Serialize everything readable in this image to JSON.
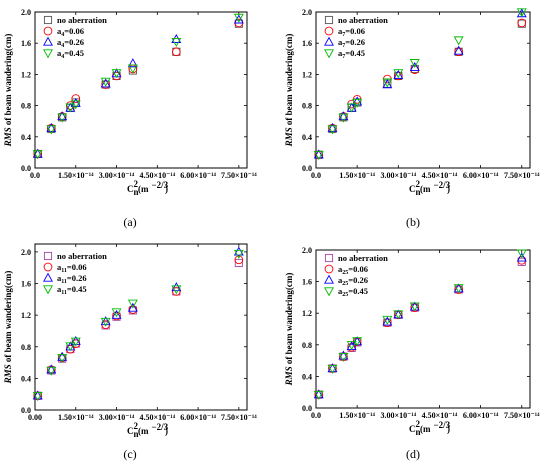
{
  "chart_data": [
    {
      "type": "scatter",
      "caption": "(a)",
      "ylabel_em": "RMS",
      "ylabel_rest": " of beam wandering(cm)",
      "xlabel_main": "C",
      "xlabel_sup": "2",
      "xlabel_sub": "n",
      "xlabel_unit": "(m",
      "xlabel_unit_sup": "−2/3",
      "xlabel_close": ")",
      "xlim": [
        0,
        7.8e-14
      ],
      "ylim": [
        0,
        2.0
      ],
      "xticks": [
        {
          "v": 0,
          "label": "0.0"
        },
        {
          "v": 1.5e-14,
          "label": "1.50×10⁻¹⁴"
        },
        {
          "v": 3e-14,
          "label": "3.00×10⁻¹⁴"
        },
        {
          "v": 4.5e-14,
          "label": "4.50×10⁻¹⁴"
        },
        {
          "v": 6e-14,
          "label": "6.00×10⁻¹⁴"
        },
        {
          "v": 7.5e-14,
          "label": "7.50×10⁻¹⁴"
        }
      ],
      "yticks": [
        {
          "v": 0.0,
          "label": "0.0"
        },
        {
          "v": 0.4,
          "label": "0.4"
        },
        {
          "v": 0.8,
          "label": "0.8"
        },
        {
          "v": 1.2,
          "label": "1.2"
        },
        {
          "v": 1.6,
          "label": "1.6"
        },
        {
          "v": 2.0,
          "label": "2.0"
        }
      ],
      "legend_placement": "top-left",
      "series": [
        {
          "name": "no aberration",
          "name_base": "",
          "name_sub": "",
          "marker": "square",
          "color": "#555555",
          "x": [
            1e-15,
            6e-15,
            1e-14,
            1.3e-14,
            1.5e-14,
            2.6e-14,
            3e-14,
            3.6e-14,
            5.2e-14,
            7.5e-14
          ],
          "y": [
            0.18,
            0.5,
            0.65,
            0.77,
            0.84,
            1.07,
            1.18,
            1.25,
            1.49,
            1.85
          ]
        },
        {
          "name": "",
          "name_base": "a",
          "name_sub": "4",
          "name_val": "=0.06",
          "marker": "circle",
          "color": "#ff0000",
          "x": [
            1e-15,
            6e-15,
            1e-14,
            1.3e-14,
            1.5e-14,
            2.6e-14,
            3e-14,
            3.6e-14,
            5.2e-14,
            7.5e-14
          ],
          "y": [
            0.18,
            0.51,
            0.66,
            0.8,
            0.89,
            1.07,
            1.18,
            1.27,
            1.49,
            1.86
          ]
        },
        {
          "name": "",
          "name_base": "a",
          "name_sub": "4",
          "name_val": "=0.26",
          "marker": "triangle-up",
          "color": "#0000ff",
          "x": [
            1e-15,
            6e-15,
            1e-14,
            1.3e-14,
            1.5e-14,
            2.6e-14,
            3e-14,
            3.6e-14,
            5.2e-14,
            7.5e-14
          ],
          "y": [
            0.18,
            0.51,
            0.66,
            0.77,
            0.83,
            1.08,
            1.21,
            1.34,
            1.65,
            1.9
          ]
        },
        {
          "name": "",
          "name_base": "a",
          "name_sub": "4",
          "name_val": "=0.45",
          "marker": "triangle-down",
          "color": "#00bb00",
          "x": [
            1e-15,
            6e-15,
            1e-14,
            1.3e-14,
            1.5e-14,
            2.6e-14,
            3e-14,
            3.6e-14,
            5.2e-14,
            7.5e-14
          ],
          "y": [
            0.18,
            0.5,
            0.65,
            0.78,
            0.82,
            1.11,
            1.22,
            1.28,
            1.62,
            1.93
          ]
        }
      ]
    },
    {
      "type": "scatter",
      "caption": "(b)",
      "ylabel_em": "RMS",
      "ylabel_rest": " of beam wandering(cm)",
      "xlabel_main": "C",
      "xlabel_sup": "2",
      "xlabel_sub": "n",
      "xlabel_unit": "(m",
      "xlabel_unit_sup": "−2/3",
      "xlabel_close": ")",
      "xlim": [
        0,
        7.8e-14
      ],
      "ylim": [
        0,
        2.0
      ],
      "xticks": [
        {
          "v": 0,
          "label": "0.0"
        },
        {
          "v": 1.5e-14,
          "label": "1.50×10⁻¹⁴"
        },
        {
          "v": 3e-14,
          "label": "3.00×10⁻¹⁴"
        },
        {
          "v": 4.5e-14,
          "label": "4.50×10⁻¹⁴"
        },
        {
          "v": 6e-14,
          "label": "6.00×10⁻¹⁴"
        },
        {
          "v": 7.5e-14,
          "label": "7.50×10⁻¹⁴"
        }
      ],
      "yticks": [
        {
          "v": 0.0,
          "label": "0.0"
        },
        {
          "v": 0.4,
          "label": "0.4"
        },
        {
          "v": 0.8,
          "label": "0.8"
        },
        {
          "v": 1.2,
          "label": "1.2"
        },
        {
          "v": 1.6,
          "label": "1.6"
        },
        {
          "v": 2.0,
          "label": "2.0"
        }
      ],
      "legend_placement": "top-left",
      "series": [
        {
          "name": "no aberration",
          "name_base": "",
          "name_sub": "",
          "marker": "square",
          "color": "#555555",
          "x": [
            1e-15,
            6e-15,
            1e-14,
            1.3e-14,
            1.5e-14,
            2.6e-14,
            3e-14,
            3.6e-14,
            5.2e-14,
            7.5e-14
          ],
          "y": [
            0.17,
            0.5,
            0.65,
            0.77,
            0.84,
            1.08,
            1.18,
            1.27,
            1.49,
            1.85
          ]
        },
        {
          "name": "",
          "name_base": "a",
          "name_sub": "7",
          "name_val": "=0.06",
          "marker": "circle",
          "color": "#ff0000",
          "x": [
            1e-15,
            6e-15,
            1e-14,
            1.3e-14,
            1.5e-14,
            2.6e-14,
            3e-14,
            3.6e-14,
            5.2e-14,
            7.5e-14
          ],
          "y": [
            0.17,
            0.51,
            0.66,
            0.82,
            0.88,
            1.14,
            1.18,
            1.26,
            1.49,
            1.86
          ]
        },
        {
          "name": "",
          "name_base": "a",
          "name_sub": "7",
          "name_val": "=0.26",
          "marker": "triangle-up",
          "color": "#0000ff",
          "x": [
            1e-15,
            6e-15,
            1e-14,
            1.3e-14,
            1.5e-14,
            2.6e-14,
            3e-14,
            3.6e-14,
            5.2e-14,
            7.5e-14
          ],
          "y": [
            0.17,
            0.51,
            0.66,
            0.77,
            0.85,
            1.07,
            1.19,
            1.29,
            1.5,
            1.98
          ]
        },
        {
          "name": "",
          "name_base": "a",
          "name_sub": "7",
          "name_val": "=0.45",
          "marker": "triangle-down",
          "color": "#00bb00",
          "x": [
            1e-15,
            6e-15,
            1e-14,
            1.3e-14,
            1.5e-14,
            2.6e-14,
            3e-14,
            3.6e-14,
            5.2e-14,
            7.5e-14
          ],
          "y": [
            0.17,
            0.5,
            0.65,
            0.78,
            0.84,
            1.1,
            1.22,
            1.35,
            1.64,
            2.0
          ]
        }
      ]
    },
    {
      "type": "scatter",
      "caption": "(c)",
      "ylabel_em": "RMS",
      "ylabel_rest": " of beam wandering(cm)",
      "xlabel_main": "C",
      "xlabel_sup": "2",
      "xlabel_sub": "n",
      "xlabel_unit": "(m",
      "xlabel_unit_sup": "−2/3",
      "xlabel_close": ")",
      "xlim": [
        0,
        7.8e-14
      ],
      "ylim": [
        0,
        2.1
      ],
      "xticks": [
        {
          "v": 0,
          "label": "0.00"
        },
        {
          "v": 1.5e-14,
          "label": "1.50×10⁻¹⁴"
        },
        {
          "v": 3e-14,
          "label": "3.00×10⁻¹⁴"
        },
        {
          "v": 4.5e-14,
          "label": "4.50×10⁻¹⁴"
        },
        {
          "v": 6e-14,
          "label": "6.00×10⁻¹⁴"
        },
        {
          "v": 7.5e-14,
          "label": "7.50×10⁻¹⁴"
        }
      ],
      "yticks": [
        {
          "v": 0.0,
          "label": "0.0"
        },
        {
          "v": 0.4,
          "label": "0.4"
        },
        {
          "v": 0.8,
          "label": "0.8"
        },
        {
          "v": 1.2,
          "label": "1.2"
        },
        {
          "v": 1.6,
          "label": "1.6"
        },
        {
          "v": 2.0,
          "label": "2.0"
        }
      ],
      "legend_placement": "top-left",
      "series": [
        {
          "name": "no aberration",
          "name_base": "",
          "name_sub": "",
          "marker": "square",
          "color": "#aa44aa",
          "x": [
            1e-15,
            6e-15,
            1e-14,
            1.3e-14,
            1.5e-14,
            2.6e-14,
            3e-14,
            3.6e-14,
            5.2e-14,
            7.5e-14
          ],
          "y": [
            0.18,
            0.5,
            0.65,
            0.77,
            0.84,
            1.07,
            1.18,
            1.26,
            1.5,
            1.86
          ]
        },
        {
          "name": "",
          "name_base": "a",
          "name_sub": "11",
          "name_val": "=0.06",
          "marker": "circle",
          "color": "#ff0000",
          "x": [
            1e-15,
            6e-15,
            1e-14,
            1.3e-14,
            1.5e-14,
            2.6e-14,
            3e-14,
            3.6e-14,
            5.2e-14,
            7.5e-14
          ],
          "y": [
            0.18,
            0.51,
            0.66,
            0.77,
            0.84,
            1.08,
            1.19,
            1.27,
            1.5,
            1.9
          ]
        },
        {
          "name": "",
          "name_base": "a",
          "name_sub": "11",
          "name_val": "=0.26",
          "marker": "triangle-up",
          "color": "#0000ff",
          "x": [
            1e-15,
            6e-15,
            1e-14,
            1.3e-14,
            1.5e-14,
            2.6e-14,
            3e-14,
            3.6e-14,
            5.2e-14,
            7.5e-14
          ],
          "y": [
            0.18,
            0.51,
            0.67,
            0.8,
            0.87,
            1.12,
            1.2,
            1.29,
            1.55,
            2.0
          ]
        },
        {
          "name": "",
          "name_base": "a",
          "name_sub": "11",
          "name_val": "=0.45",
          "marker": "triangle-down",
          "color": "#00bb00",
          "x": [
            1e-15,
            6e-15,
            1e-14,
            1.3e-14,
            1.5e-14,
            2.6e-14,
            3e-14,
            3.6e-14,
            5.2e-14,
            7.5e-14
          ],
          "y": [
            0.18,
            0.5,
            0.66,
            0.81,
            0.87,
            1.12,
            1.24,
            1.35,
            1.53,
            1.98
          ]
        }
      ]
    },
    {
      "type": "scatter",
      "caption": "(d)",
      "ylabel_em": "RMS",
      "ylabel_rest": " of beam wandering(cm)",
      "xlabel_main": "C",
      "xlabel_sup": "2",
      "xlabel_sub": "n",
      "xlabel_unit": "(m",
      "xlabel_unit_sup": "−2/3",
      "xlabel_close": ")",
      "xlim": [
        0,
        7.8e-14
      ],
      "ylim": [
        0,
        2.0
      ],
      "xticks": [
        {
          "v": 0,
          "label": "0.0"
        },
        {
          "v": 1.5e-14,
          "label": "1.50×10⁻¹⁴"
        },
        {
          "v": 3e-14,
          "label": "3.00×10⁻¹⁴"
        },
        {
          "v": 4.5e-14,
          "label": "4.50×10⁻¹⁴"
        },
        {
          "v": 6e-14,
          "label": "6.00×10⁻¹⁴"
        },
        {
          "v": 7.5e-14,
          "label": "7.50×10⁻¹⁴"
        }
      ],
      "yticks": [
        {
          "v": 0.0,
          "label": "0.0"
        },
        {
          "v": 0.4,
          "label": "0.4"
        },
        {
          "v": 0.8,
          "label": "0.8"
        },
        {
          "v": 1.2,
          "label": "1.2"
        },
        {
          "v": 1.6,
          "label": "1.6"
        },
        {
          "v": 2.0,
          "label": "2.0"
        }
      ],
      "legend_placement": "top-left",
      "series": [
        {
          "name": "no aberration",
          "name_base": "",
          "name_sub": "",
          "marker": "square",
          "color": "#aa44aa",
          "x": [
            1e-15,
            6e-15,
            1e-14,
            1.3e-14,
            1.5e-14,
            2.6e-14,
            3e-14,
            3.6e-14,
            5.2e-14,
            7.5e-14
          ],
          "y": [
            0.17,
            0.5,
            0.65,
            0.76,
            0.83,
            1.08,
            1.18,
            1.27,
            1.5,
            1.85
          ]
        },
        {
          "name": "",
          "name_base": "a",
          "name_sub": "25",
          "name_val": "=0.06",
          "marker": "circle",
          "color": "#ff0000",
          "x": [
            1e-15,
            6e-15,
            1e-14,
            1.3e-14,
            1.5e-14,
            2.6e-14,
            3e-14,
            3.6e-14,
            5.2e-14,
            7.5e-14
          ],
          "y": [
            0.17,
            0.5,
            0.65,
            0.77,
            0.84,
            1.08,
            1.18,
            1.27,
            1.5,
            1.87
          ]
        },
        {
          "name": "",
          "name_base": "a",
          "name_sub": "25",
          "name_val": "=0.26",
          "marker": "triangle-up",
          "color": "#0000ff",
          "x": [
            1e-15,
            6e-15,
            1e-14,
            1.3e-14,
            1.5e-14,
            2.6e-14,
            3e-14,
            3.6e-14,
            5.2e-14,
            7.5e-14
          ],
          "y": [
            0.17,
            0.5,
            0.66,
            0.78,
            0.84,
            1.09,
            1.18,
            1.28,
            1.51,
            1.9
          ]
        },
        {
          "name": "",
          "name_base": "a",
          "name_sub": "25",
          "name_val": "=0.45",
          "marker": "triangle-down",
          "color": "#00bb00",
          "x": [
            1e-15,
            6e-15,
            1e-14,
            1.3e-14,
            1.5e-14,
            2.6e-14,
            3e-14,
            3.6e-14,
            5.2e-14,
            7.5e-14
          ],
          "y": [
            0.17,
            0.5,
            0.65,
            0.8,
            0.85,
            1.12,
            1.19,
            1.29,
            1.52,
            1.96
          ]
        }
      ]
    }
  ]
}
